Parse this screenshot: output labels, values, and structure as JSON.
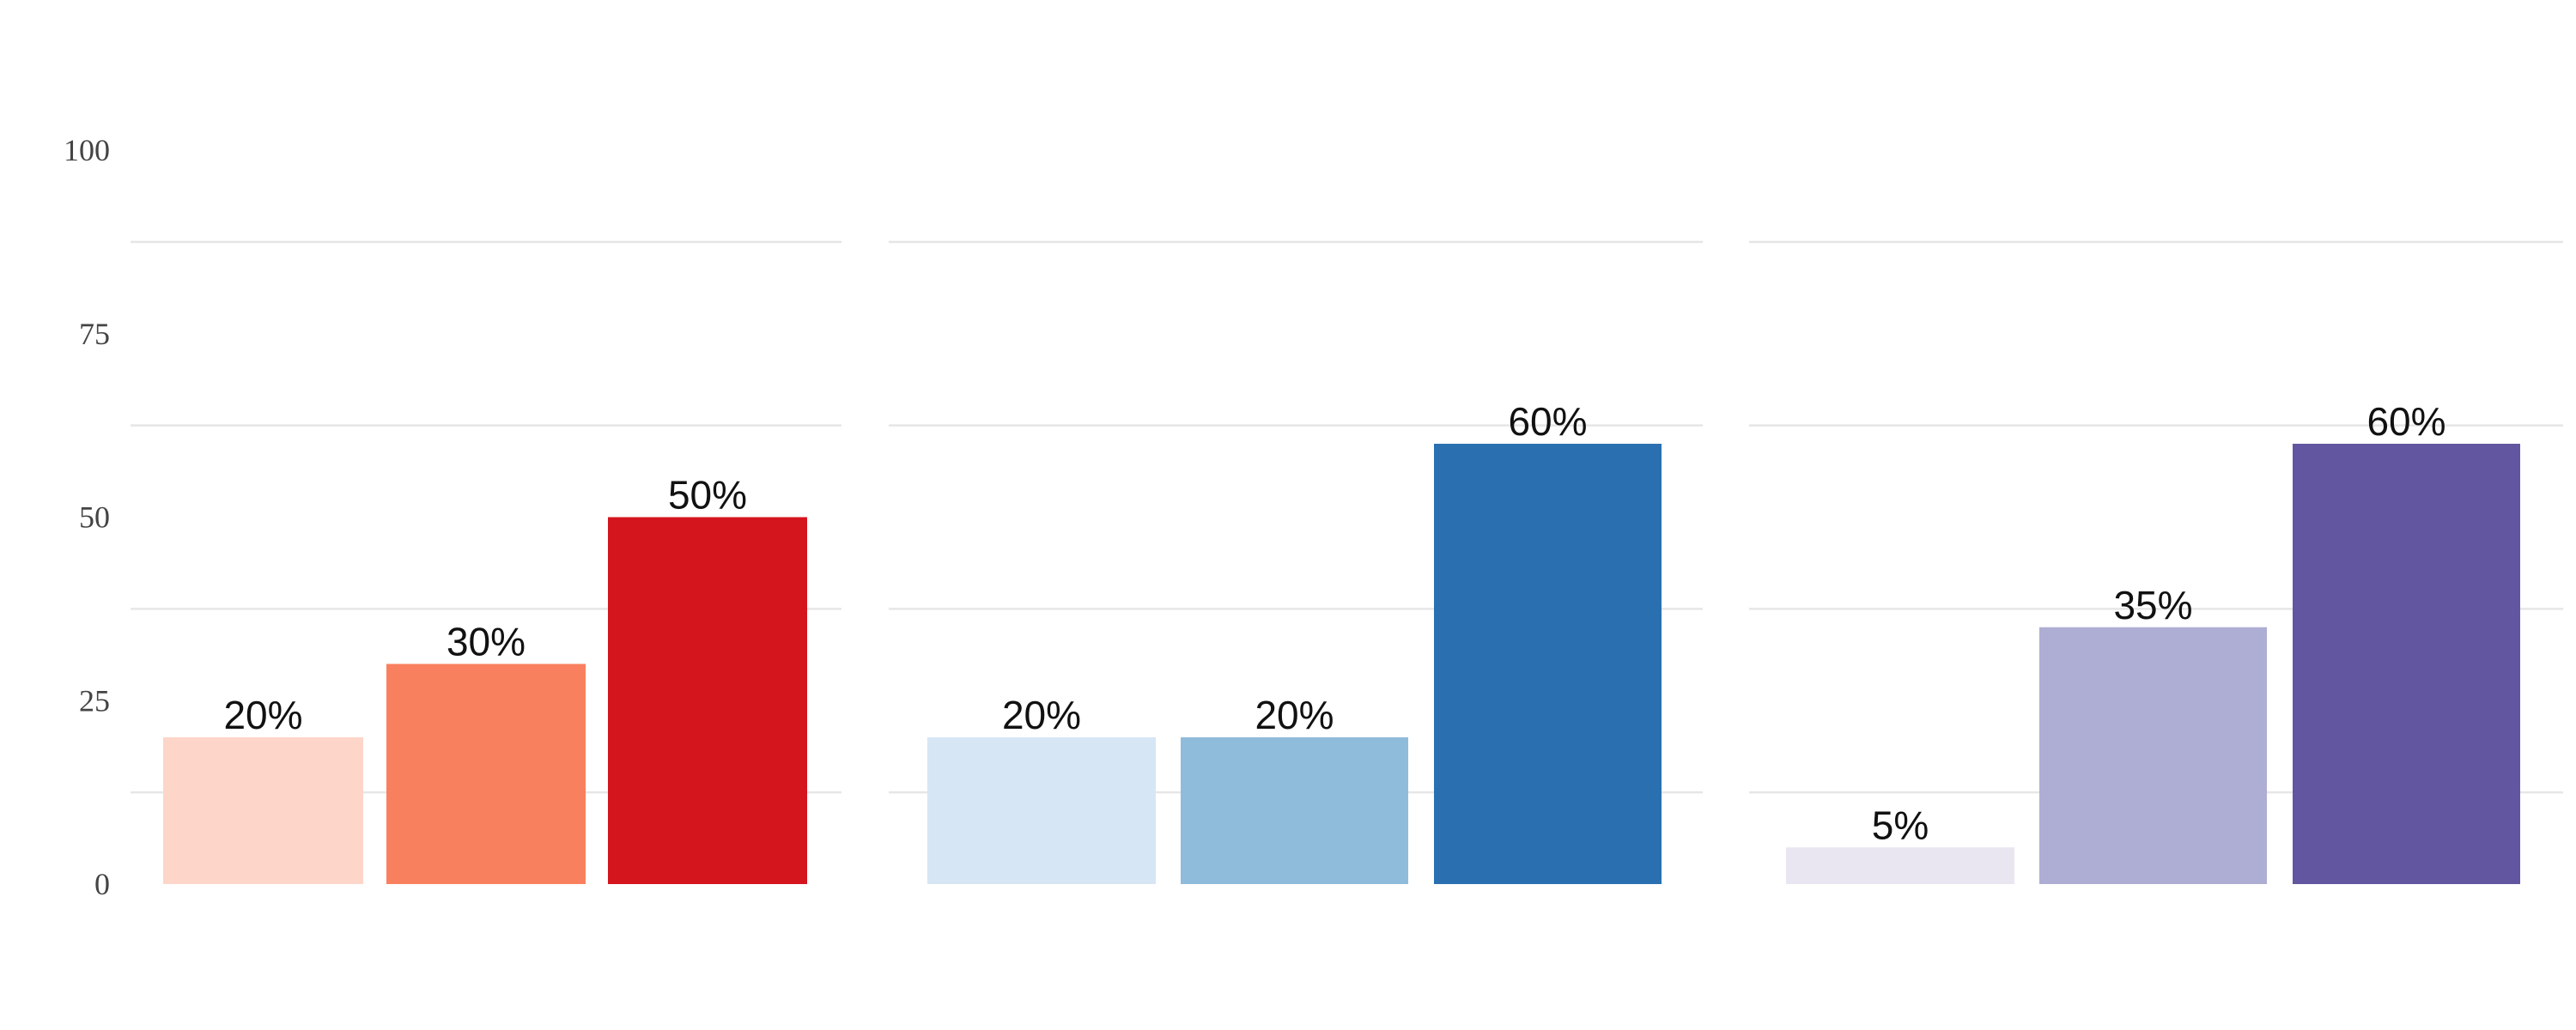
{
  "chart_data": {
    "type": "bar",
    "ylim": [
      0,
      100
    ],
    "yticks": [
      0,
      25,
      50,
      75,
      100
    ],
    "grid": true,
    "legend": "none",
    "panels": [
      {
        "name": "",
        "values": [
          20,
          30,
          50
        ],
        "labels": [
          "20%",
          "30%",
          "50%"
        ],
        "colors": [
          "#fdd6c9",
          "#f9805f",
          "#d4151e"
        ]
      },
      {
        "name": "",
        "values": [
          20,
          20,
          60
        ],
        "labels": [
          "20%",
          "20%",
          "60%"
        ],
        "colors": [
          "#d7e6f5",
          "#90bcdb",
          "#2a70b1"
        ]
      },
      {
        "name": "",
        "values": [
          5,
          35,
          60
        ],
        "labels": [
          "5%",
          "35%",
          "60%"
        ],
        "colors": [
          "#e9e6f1",
          "#aeadd3",
          "#6256a0"
        ]
      }
    ]
  }
}
